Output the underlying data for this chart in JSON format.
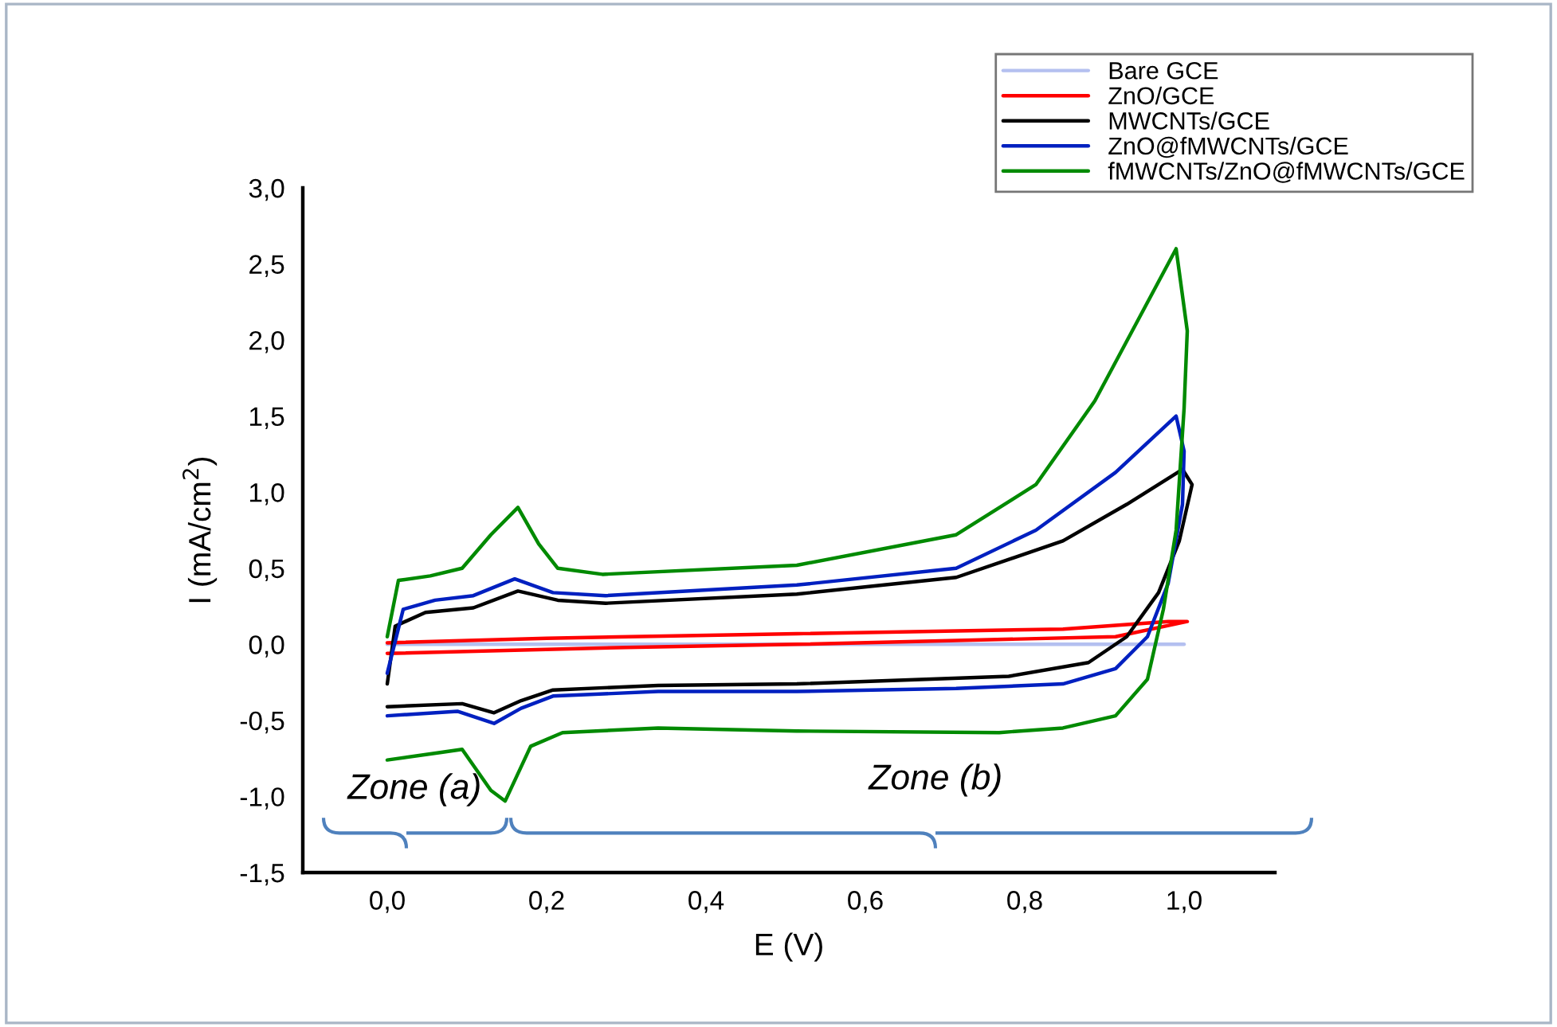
{
  "chart_data": {
    "type": "line",
    "xlabel": "E (V)",
    "ylabel": "I (mA/cm$^{2}$)",
    "xlim": [
      -0.106,
      1.114
    ],
    "ylim": [
      -1.5,
      3.0
    ],
    "xticks": [
      {
        "value": 0.0,
        "label": "0,0"
      },
      {
        "value": 0.2,
        "label": "0,2"
      },
      {
        "value": 0.4,
        "label": "0,4"
      },
      {
        "value": 0.6,
        "label": "0,6"
      },
      {
        "value": 0.8,
        "label": "0,8"
      },
      {
        "value": 1.0,
        "label": "1,0"
      }
    ],
    "yticks": [
      {
        "value": -1.5,
        "label": "-1,5"
      },
      {
        "value": -1.0,
        "label": "-1,0"
      },
      {
        "value": -0.5,
        "label": "-0,5"
      },
      {
        "value": 0.0,
        "label": "0,0"
      },
      {
        "value": 0.5,
        "label": "0,5"
      },
      {
        "value": 1.0,
        "label": "1,0"
      },
      {
        "value": 1.5,
        "label": "1,5"
      },
      {
        "value": 2.0,
        "label": "2,0"
      },
      {
        "value": 2.5,
        "label": "2,5"
      },
      {
        "value": 3.0,
        "label": "3,0"
      }
    ],
    "grid": false,
    "legend": "top right",
    "marker": "none",
    "line_style": "solid",
    "series": [
      {
        "name": "Bare GCE",
        "color": "#b4c0f0",
        "x": [
          0.0,
          0.5,
          1.0
        ],
        "values": [
          0.0,
          0.0,
          0.0
        ]
      },
      {
        "name": "ZnO/GCE",
        "color": "#ff0000",
        "x": [
          0.0,
          0.3,
          0.514,
          0.914,
          1.004,
          0.98,
          0.848,
          0.514,
          0.2,
          0.0
        ],
        "values": [
          -0.06,
          -0.02,
          0.0,
          0.05,
          0.15,
          0.15,
          0.1,
          0.07,
          0.04,
          0.01
        ]
      },
      {
        "name": "MWCNTs/GCE",
        "color": "#000000",
        "x": [
          0.0,
          0.01,
          0.048,
          0.108,
          0.164,
          0.214,
          0.274,
          0.514,
          0.714,
          0.848,
          0.928,
          0.998,
          1.01,
          0.994,
          0.968,
          0.928,
          0.88,
          0.78,
          0.514,
          0.34,
          0.208,
          0.168,
          0.134,
          0.094,
          0.0
        ],
        "values": [
          -0.26,
          0.12,
          0.21,
          0.24,
          0.35,
          0.29,
          0.27,
          0.33,
          0.44,
          0.68,
          0.92,
          1.15,
          1.05,
          0.68,
          0.34,
          0.05,
          -0.12,
          -0.21,
          -0.26,
          -0.27,
          -0.3,
          -0.37,
          -0.45,
          -0.39,
          -0.41
        ]
      },
      {
        "name": "ZnO@fMWCNTs/GCE",
        "color": "#0020c0",
        "x": [
          0.0,
          0.02,
          0.06,
          0.108,
          0.16,
          0.208,
          0.274,
          0.514,
          0.714,
          0.814,
          0.914,
          0.99,
          1.0,
          0.998,
          0.98,
          0.954,
          0.914,
          0.848,
          0.714,
          0.514,
          0.34,
          0.208,
          0.168,
          0.134,
          0.088,
          0.0
        ],
        "values": [
          -0.19,
          0.23,
          0.29,
          0.32,
          0.43,
          0.34,
          0.32,
          0.39,
          0.5,
          0.75,
          1.13,
          1.5,
          1.27,
          0.92,
          0.4,
          0.05,
          -0.16,
          -0.26,
          -0.29,
          -0.31,
          -0.31,
          -0.34,
          -0.42,
          -0.52,
          -0.44,
          -0.47
        ]
      },
      {
        "name": "fMWCNTs/ZnO@fMWCNTs/GCE",
        "color": "#008a00",
        "x": [
          0.0,
          0.014,
          0.054,
          0.094,
          0.13,
          0.164,
          0.19,
          0.214,
          0.27,
          0.514,
          0.714,
          0.814,
          0.888,
          0.99,
          1.004,
          1.0,
          0.99,
          0.974,
          0.954,
          0.914,
          0.848,
          0.768,
          0.514,
          0.34,
          0.22,
          0.18,
          0.148,
          0.13,
          0.094,
          0.068,
          0.0
        ],
        "values": [
          0.05,
          0.42,
          0.45,
          0.5,
          0.72,
          0.9,
          0.66,
          0.5,
          0.46,
          0.52,
          0.72,
          1.05,
          1.6,
          2.6,
          2.06,
          1.55,
          0.75,
          0.23,
          -0.23,
          -0.47,
          -0.55,
          -0.58,
          -0.57,
          -0.55,
          -0.58,
          -0.67,
          -1.03,
          -0.96,
          -0.69,
          -0.71,
          -0.76
        ]
      }
    ],
    "annotations": [
      "Zone (a)",
      "Zone (b)"
    ]
  }
}
